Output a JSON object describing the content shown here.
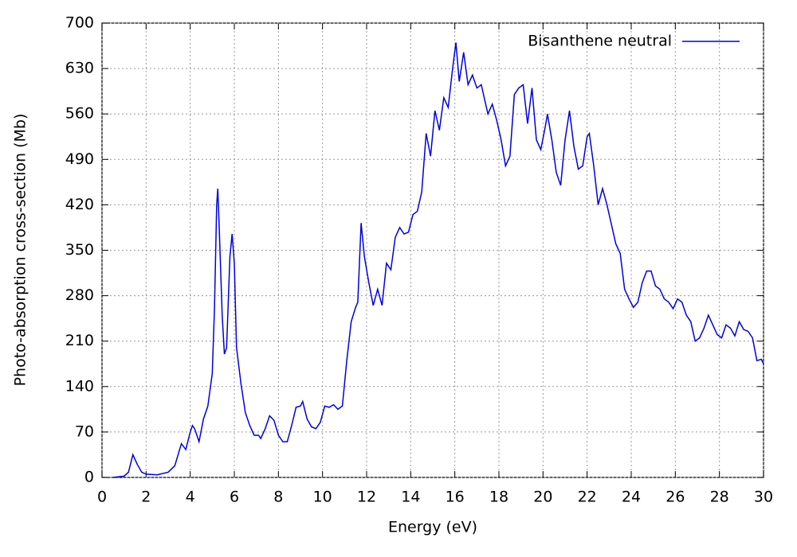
{
  "chart_data": {
    "type": "line",
    "xlabel": "Energy (eV)",
    "ylabel": "Photo-absorption cross-section (Mb)",
    "x": [
      0.5,
      1.0,
      1.2,
      1.4,
      1.6,
      1.8,
      2.0,
      2.5,
      3.0,
      3.3,
      3.6,
      3.8,
      4.0,
      4.1,
      4.2,
      4.4,
      4.6,
      4.8,
      5.0,
      5.1,
      5.2,
      5.25,
      5.3,
      5.45,
      5.55,
      5.65,
      5.8,
      5.9,
      6.0,
      6.1,
      6.3,
      6.5,
      6.7,
      6.9,
      7.1,
      7.2,
      7.4,
      7.6,
      7.8,
      8.0,
      8.2,
      8.4,
      8.6,
      8.8,
      9.0,
      9.1,
      9.3,
      9.5,
      9.7,
      9.9,
      10.1,
      10.3,
      10.5,
      10.7,
      10.9,
      11.1,
      11.3,
      11.5,
      11.6,
      11.75,
      11.9,
      12.1,
      12.3,
      12.5,
      12.7,
      12.9,
      13.1,
      13.3,
      13.5,
      13.7,
      13.9,
      14.1,
      14.3,
      14.5,
      14.7,
      14.9,
      15.1,
      15.3,
      15.5,
      15.7,
      15.9,
      16.05,
      16.2,
      16.4,
      16.6,
      16.8,
      17.0,
      17.2,
      17.5,
      17.7,
      17.9,
      18.1,
      18.3,
      18.5,
      18.7,
      18.9,
      19.1,
      19.3,
      19.5,
      19.7,
      19.9,
      20.1,
      20.2,
      20.4,
      20.6,
      20.8,
      21.0,
      21.2,
      21.4,
      21.6,
      21.8,
      22.0,
      22.1,
      22.3,
      22.5,
      22.7,
      22.9,
      23.1,
      23.3,
      23.5,
      23.7,
      23.9,
      24.1,
      24.3,
      24.5,
      24.7,
      24.9,
      25.1,
      25.3,
      25.5,
      25.7,
      25.9,
      26.1,
      26.3,
      26.5,
      26.7,
      26.9,
      27.1,
      27.3,
      27.5,
      27.7,
      27.9,
      28.1,
      28.3,
      28.5,
      28.7,
      28.9,
      29.1,
      29.3,
      29.5,
      29.7,
      29.9,
      30.0
    ],
    "series": [
      {
        "name": "Bisanthene neutral",
        "color": "#0000e0",
        "values": [
          0,
          2,
          8,
          35,
          20,
          8,
          5,
          4,
          8,
          18,
          52,
          43,
          70,
          80,
          75,
          55,
          90,
          110,
          160,
          260,
          420,
          445,
          400,
          250,
          190,
          200,
          340,
          375,
          330,
          200,
          145,
          100,
          80,
          65,
          65,
          60,
          75,
          95,
          88,
          65,
          55,
          55,
          80,
          108,
          110,
          117,
          90,
          78,
          75,
          85,
          110,
          108,
          112,
          105,
          110,
          180,
          240,
          262,
          270,
          392,
          340,
          300,
          265,
          290,
          265,
          330,
          320,
          370,
          385,
          375,
          378,
          405,
          410,
          440,
          530,
          495,
          565,
          535,
          585,
          570,
          630,
          670,
          610,
          655,
          605,
          620,
          600,
          605,
          560,
          575,
          550,
          520,
          480,
          495,
          590,
          600,
          605,
          545,
          600,
          520,
          505,
          540,
          560,
          520,
          470,
          450,
          520,
          565,
          510,
          475,
          480,
          525,
          530,
          480,
          420,
          445,
          420,
          390,
          360,
          345,
          290,
          275,
          262,
          270,
          300,
          318,
          318,
          295,
          290,
          275,
          270,
          260,
          275,
          270,
          250,
          240,
          210,
          215,
          230,
          250,
          235,
          220,
          215,
          235,
          230,
          218,
          240,
          228,
          225,
          215,
          180,
          182,
          175
        ]
      }
    ],
    "xlim": [
      0,
      30
    ],
    "xticks": [
      0,
      2,
      4,
      6,
      8,
      10,
      12,
      14,
      16,
      18,
      20,
      22,
      24,
      26,
      28,
      30
    ],
    "ylim": [
      0,
      700
    ],
    "yticks": [
      0,
      70,
      140,
      210,
      280,
      350,
      420,
      490,
      560,
      630,
      700
    ],
    "grid": true,
    "legend": "upper right"
  }
}
